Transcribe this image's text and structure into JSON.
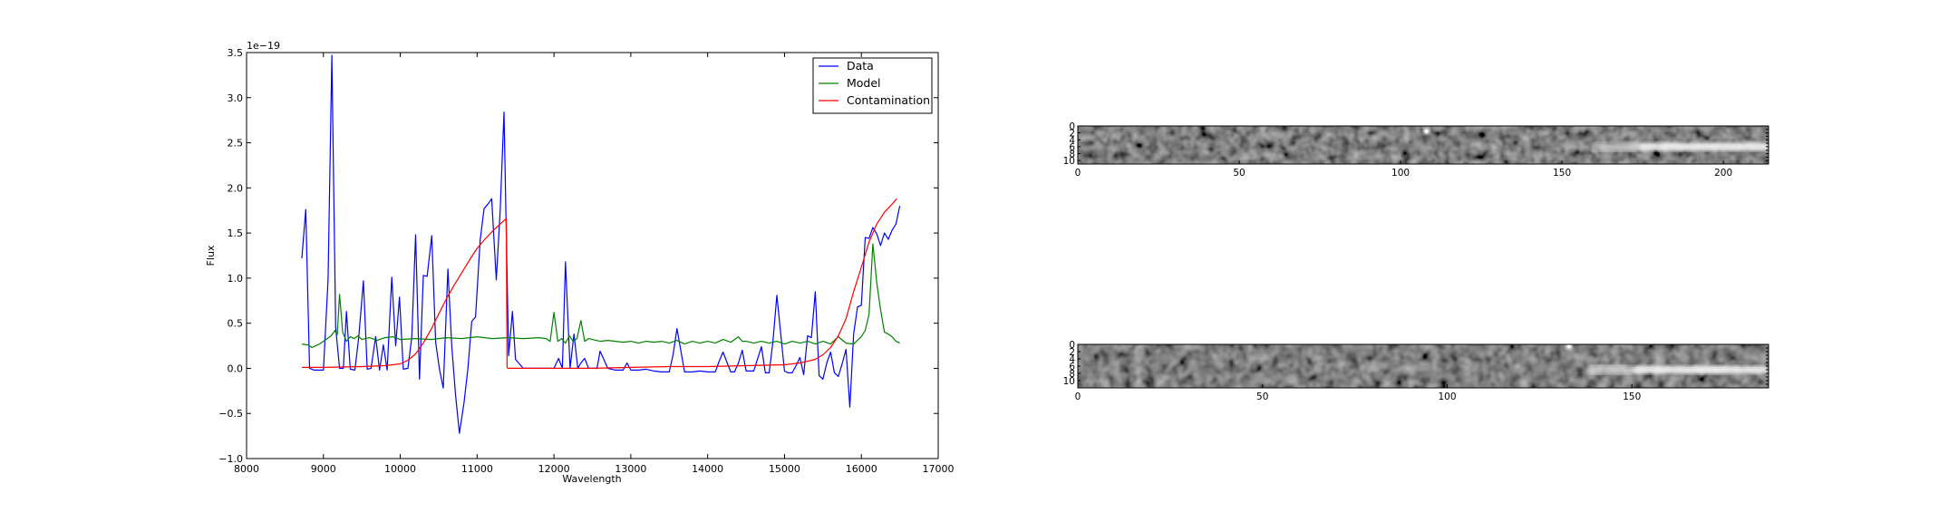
{
  "chart_data": [
    {
      "type": "line",
      "xlabel": "Wavelength",
      "ylabel": "Flux",
      "offset_label": "1e−19",
      "xlim": [
        8000,
        17000
      ],
      "ylim": [
        -1.0,
        3.5
      ],
      "xticks": [
        8000,
        9000,
        10000,
        11000,
        12000,
        13000,
        14000,
        15000,
        16000,
        17000
      ],
      "yticks": [
        -1.0,
        -0.5,
        0.0,
        0.5,
        1.0,
        1.5,
        2.0,
        2.5,
        3.0,
        3.5
      ],
      "ytick_labels": [
        "−1.0",
        "−0.5",
        "0.0",
        "0.5",
        "1.0",
        "1.5",
        "2.0",
        "2.5",
        "3.0",
        "3.5"
      ],
      "legend_position": "top-right",
      "series": [
        {
          "name": "Data",
          "color": "#0000ff",
          "x": [
            8720,
            8770,
            8820,
            8880,
            8940,
            9000,
            9060,
            9110,
            9160,
            9210,
            9260,
            9300,
            9350,
            9410,
            9460,
            9520,
            9570,
            9620,
            9680,
            9730,
            9780,
            9830,
            9890,
            9940,
            9990,
            10040,
            10100,
            10150,
            10200,
            10250,
            10300,
            10350,
            10410,
            10460,
            10510,
            10560,
            10620,
            10670,
            10720,
            10770,
            10830,
            10880,
            10930,
            10980,
            11040,
            11090,
            11140,
            11190,
            11250,
            11300,
            11350,
            11410,
            11460,
            11500,
            11600,
            11700,
            11800,
            11900,
            12000,
            12060,
            12110,
            12150,
            12210,
            12260,
            12310,
            12350,
            12400,
            12450,
            12500,
            12560,
            12600,
            12700,
            12800,
            12900,
            12950,
            13000,
            13100,
            13200,
            13300,
            13400,
            13500,
            13550,
            13600,
            13700,
            13800,
            13900,
            14000,
            14100,
            14150,
            14200,
            14300,
            14350,
            14400,
            14450,
            14500,
            14550,
            14600,
            14700,
            14750,
            14800,
            14850,
            14900,
            14950,
            15000,
            15050,
            15100,
            15150,
            15200,
            15250,
            15300,
            15350,
            15400,
            15450,
            15500,
            15550,
            15600,
            15650,
            15700,
            15750,
            15800,
            15850,
            15900,
            15950,
            16000,
            16050,
            16100,
            16150,
            16200,
            16250,
            16300,
            16350,
            16400,
            16450,
            16500
          ],
          "y": [
            1.22,
            1.76,
            0.0,
            -0.02,
            -0.02,
            -0.02,
            0.98,
            3.47,
            0.45,
            0.0,
            0.0,
            0.63,
            -0.01,
            -0.02,
            0.35,
            0.97,
            -0.01,
            0.0,
            0.35,
            -0.02,
            0.26,
            -0.02,
            1.01,
            0.25,
            0.79,
            -0.01,
            0.0,
            0.35,
            1.48,
            -0.12,
            1.03,
            1.02,
            1.47,
            0.29,
            -0.01,
            -0.22,
            1.1,
            0.24,
            -0.3,
            -0.72,
            -0.38,
            0.0,
            0.52,
            0.57,
            1.42,
            1.77,
            1.82,
            1.88,
            0.98,
            1.75,
            2.84,
            0.14,
            0.63,
            0.1,
            0.0,
            0.0,
            0.0,
            0.0,
            0.0,
            0.11,
            0.0,
            1.18,
            0.0,
            0.38,
            0.0,
            0.06,
            0.11,
            0.0,
            0.0,
            0.0,
            0.19,
            0.0,
            -0.02,
            -0.02,
            0.06,
            -0.02,
            -0.02,
            -0.01,
            -0.03,
            -0.04,
            -0.04,
            0.15,
            0.44,
            -0.04,
            -0.04,
            -0.03,
            -0.04,
            -0.04,
            0.08,
            0.18,
            -0.04,
            -0.04,
            0.06,
            0.2,
            -0.03,
            -0.03,
            -0.03,
            0.24,
            -0.05,
            -0.05,
            0.3,
            0.81,
            0.39,
            -0.03,
            -0.05,
            -0.05,
            0.03,
            0.12,
            -0.07,
            0.36,
            0.34,
            0.85,
            -0.08,
            -0.12,
            0.06,
            0.18,
            -0.05,
            -0.09,
            0.05,
            0.21,
            -0.43,
            0.38,
            0.68,
            0.7,
            1.45,
            1.44,
            1.56,
            1.49,
            1.36,
            1.5,
            1.43,
            1.53,
            1.6,
            1.8
          ]
        },
        {
          "name": "Model",
          "color": "#008000",
          "x": [
            8720,
            8800,
            8850,
            8900,
            8950,
            9000,
            9050,
            9100,
            9150,
            9180,
            9210,
            9250,
            9300,
            9350,
            9400,
            9450,
            9500,
            9600,
            9700,
            9800,
            9900,
            10000,
            10200,
            10400,
            10600,
            10800,
            11000,
            11200,
            11400,
            11600,
            11800,
            11900,
            11950,
            12000,
            12050,
            12100,
            12150,
            12200,
            12250,
            12300,
            12350,
            12400,
            12450,
            12500,
            12600,
            12700,
            12800,
            12900,
            13000,
            13100,
            13200,
            13300,
            13400,
            13500,
            13600,
            13700,
            13800,
            13900,
            14000,
            14100,
            14200,
            14300,
            14400,
            14450,
            14500,
            14600,
            14700,
            14800,
            14900,
            15000,
            15100,
            15200,
            15300,
            15400,
            15500,
            15600,
            15700,
            15800,
            15900,
            16000,
            16050,
            16100,
            16150,
            16200,
            16250,
            16300,
            16350,
            16400,
            16450,
            16500
          ],
          "y": [
            0.27,
            0.26,
            0.23,
            0.25,
            0.27,
            0.3,
            0.33,
            0.36,
            0.42,
            0.37,
            0.82,
            0.4,
            0.3,
            0.35,
            0.33,
            0.36,
            0.32,
            0.34,
            0.31,
            0.34,
            0.35,
            0.32,
            0.33,
            0.32,
            0.34,
            0.33,
            0.35,
            0.33,
            0.34,
            0.33,
            0.34,
            0.33,
            0.3,
            0.62,
            0.3,
            0.33,
            0.28,
            0.36,
            0.3,
            0.33,
            0.53,
            0.3,
            0.33,
            0.32,
            0.3,
            0.31,
            0.3,
            0.29,
            0.3,
            0.28,
            0.3,
            0.29,
            0.3,
            0.28,
            0.31,
            0.27,
            0.3,
            0.28,
            0.3,
            0.28,
            0.32,
            0.29,
            0.35,
            0.3,
            0.3,
            0.28,
            0.3,
            0.28,
            0.3,
            0.27,
            0.3,
            0.28,
            0.3,
            0.27,
            0.3,
            0.27,
            0.35,
            0.28,
            0.27,
            0.35,
            0.42,
            0.6,
            1.38,
            0.95,
            0.65,
            0.4,
            0.38,
            0.35,
            0.3,
            0.28
          ]
        },
        {
          "name": "Contamination",
          "color": "#ff0000",
          "x": [
            8720,
            9000,
            9500,
            9800,
            10000,
            10100,
            10200,
            10300,
            10400,
            10500,
            10600,
            10700,
            10800,
            10900,
            11000,
            11100,
            11200,
            11300,
            11380,
            11390,
            11400,
            11600,
            12000,
            12500,
            13000,
            13500,
            14000,
            14500,
            15000,
            15200,
            15400,
            15500,
            15600,
            15700,
            15800,
            15900,
            16000,
            16100,
            16200,
            16300,
            16400,
            16460
          ],
          "y": [
            0.01,
            0.01,
            0.02,
            0.03,
            0.05,
            0.09,
            0.16,
            0.28,
            0.43,
            0.6,
            0.77,
            0.92,
            1.06,
            1.2,
            1.33,
            1.43,
            1.52,
            1.6,
            1.66,
            0.01,
            0.0,
            0.0,
            0.0,
            0.0,
            0.01,
            0.02,
            0.02,
            0.03,
            0.04,
            0.06,
            0.1,
            0.15,
            0.23,
            0.36,
            0.55,
            0.85,
            1.12,
            1.4,
            1.6,
            1.73,
            1.82,
            1.88
          ]
        }
      ]
    },
    {
      "type": "heatmap",
      "xticks": [
        0,
        50,
        100,
        150,
        200
      ],
      "yticks": [
        0,
        2,
        4,
        6,
        8,
        10
      ],
      "xlim": [
        0,
        214
      ],
      "ylim": [
        11,
        0
      ],
      "colormap": "gray",
      "features": [
        {
          "kind": "spot",
          "x": 108,
          "y": 1
        },
        {
          "kind": "trace",
          "x_start": 160,
          "x_end": 214,
          "y": 6
        }
      ]
    },
    {
      "type": "heatmap",
      "xticks": [
        0,
        50,
        100,
        150
      ],
      "yticks": [
        0,
        2,
        4,
        6,
        8,
        10
      ],
      "xlim": [
        0,
        187
      ],
      "ylim": [
        12,
        0
      ],
      "colormap": "gray",
      "features": [
        {
          "kind": "spot",
          "x": 133,
          "y": 0
        },
        {
          "kind": "trace",
          "x_start": 138,
          "x_end": 187,
          "y": 7
        }
      ]
    }
  ]
}
